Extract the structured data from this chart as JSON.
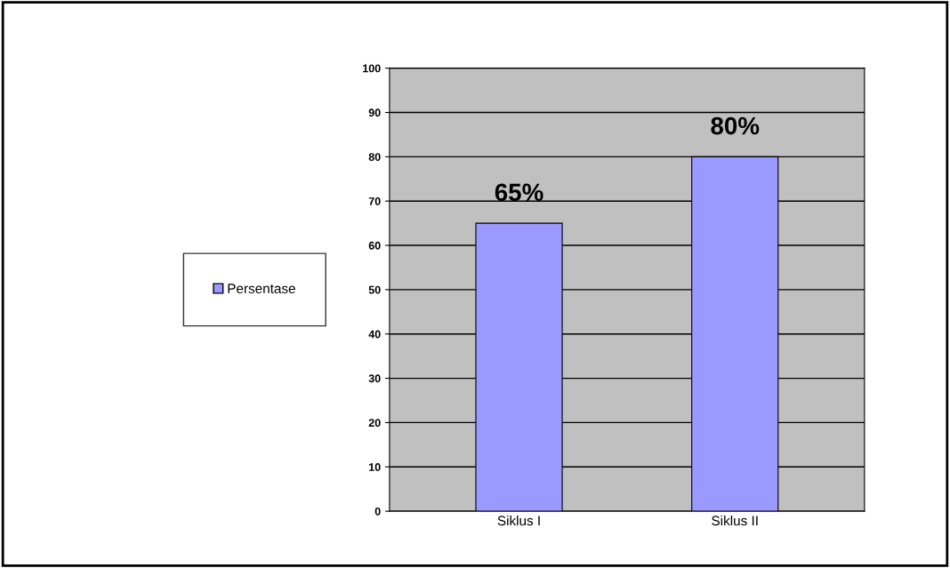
{
  "chart_data": {
    "type": "bar",
    "categories": [
      "Siklus I",
      "Siklus II"
    ],
    "series": [
      {
        "name": "Persentase",
        "color": "#9999ff",
        "values": [
          65,
          80
        ],
        "value_labels": [
          "65%",
          "80%"
        ]
      }
    ],
    "ylim": [
      0,
      100
    ],
    "yticks": [
      0,
      10,
      20,
      30,
      40,
      50,
      60,
      70,
      80,
      90,
      100
    ],
    "grid": "y",
    "legend": "left"
  }
}
